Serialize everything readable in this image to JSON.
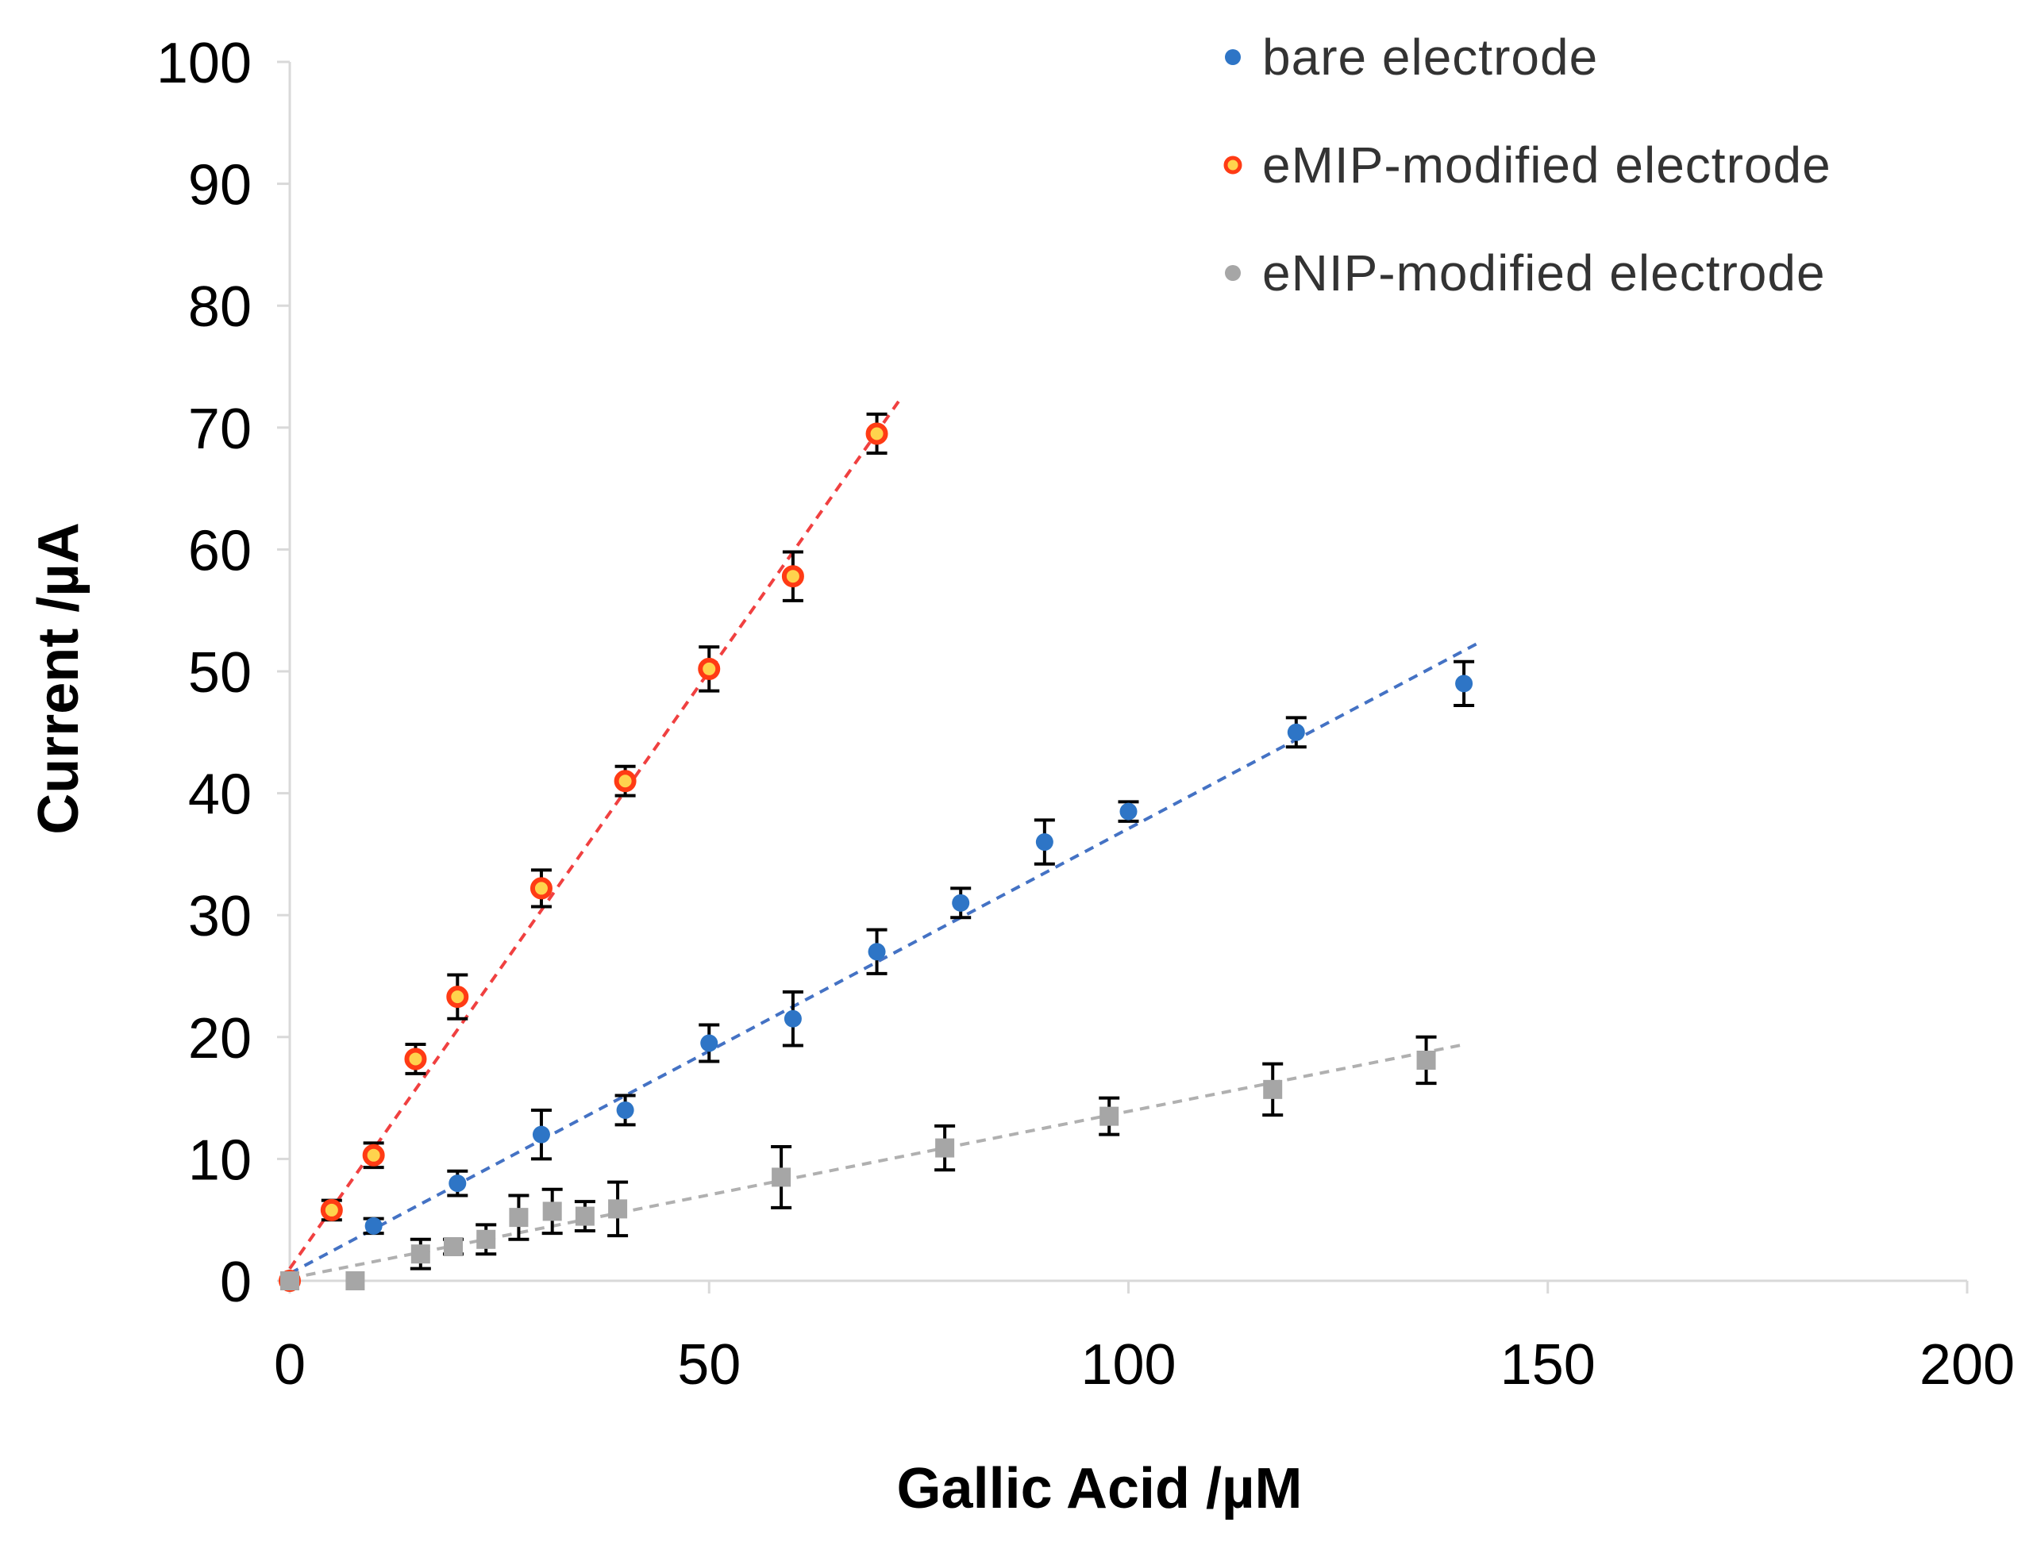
{
  "chart_data": {
    "type": "scatter",
    "title": "",
    "xlabel": "Gallic Acid /µM",
    "ylabel": "Current /µA",
    "xlim": [
      0,
      200
    ],
    "ylim": [
      0,
      100
    ],
    "xticks": [
      0,
      50,
      100,
      150,
      200
    ],
    "yticks": [
      0,
      10,
      20,
      30,
      40,
      50,
      60,
      70,
      80,
      90,
      100
    ],
    "xtick_labels": [
      "0",
      "50",
      "100",
      "150",
      "200"
    ],
    "ytick_labels": [
      "0",
      "10",
      "20",
      "30",
      "40",
      "50",
      "60",
      "70",
      "80",
      "90",
      "100"
    ],
    "grid": false,
    "legend_position": "top-right",
    "series": [
      {
        "name": "bare electrode",
        "color": "#2e75c6",
        "marker": "circle",
        "trend": {
          "x_range": [
            0,
            142
          ],
          "slope": 0.365,
          "intercept": 0.6,
          "color": "#4472c4"
        },
        "points": [
          {
            "x": 0,
            "y": 0,
            "err": 0
          },
          {
            "x": 10,
            "y": 4.5,
            "err": 0.6
          },
          {
            "x": 20,
            "y": 8,
            "err": 1
          },
          {
            "x": 30,
            "y": 12,
            "err": 2
          },
          {
            "x": 40,
            "y": 14,
            "err": 1.2
          },
          {
            "x": 50,
            "y": 19.5,
            "err": 1.5
          },
          {
            "x": 60,
            "y": 21.5,
            "err": 2.2
          },
          {
            "x": 70,
            "y": 27,
            "err": 1.8
          },
          {
            "x": 80,
            "y": 31,
            "err": 1.2
          },
          {
            "x": 90,
            "y": 36,
            "err": 1.8
          },
          {
            "x": 100,
            "y": 38.5,
            "err": 0.8
          },
          {
            "x": 120,
            "y": 45,
            "err": 1.2
          },
          {
            "x": 140,
            "y": 49,
            "err": 1.8
          }
        ]
      },
      {
        "name": "eMIP-modified electrode",
        "color": "#ff3b14",
        "marker": "ring",
        "trend": {
          "x_range": [
            0,
            73
          ],
          "slope": 0.98,
          "intercept": 1.0,
          "color": "#f04040"
        },
        "points": [
          {
            "x": 0,
            "y": 0,
            "err": 0
          },
          {
            "x": 5,
            "y": 5.8,
            "err": 0.8
          },
          {
            "x": 10,
            "y": 10.3,
            "err": 1
          },
          {
            "x": 15,
            "y": 18.2,
            "err": 1.2
          },
          {
            "x": 20,
            "y": 23.3,
            "err": 1.8
          },
          {
            "x": 30,
            "y": 32.2,
            "err": 1.5
          },
          {
            "x": 40,
            "y": 41,
            "err": 1.2
          },
          {
            "x": 50,
            "y": 50.2,
            "err": 1.8
          },
          {
            "x": 60,
            "y": 57.8,
            "err": 2
          },
          {
            "x": 70,
            "y": 69.5,
            "err": 1.6
          }
        ]
      },
      {
        "name": "eNIP-modified electrode",
        "color": "#a6a6a6",
        "marker": "square",
        "trend": {
          "x_range": [
            0,
            140
          ],
          "slope": 0.137,
          "intercept": 0.2,
          "color": "#b0b0b0"
        },
        "points": [
          {
            "x": 0,
            "y": 0,
            "err": 0
          },
          {
            "x": 7.8,
            "y": 0,
            "err": 0
          },
          {
            "x": 15.6,
            "y": 2.2,
            "err": 1.2
          },
          {
            "x": 19.5,
            "y": 2.8,
            "err": 0.6
          },
          {
            "x": 23.4,
            "y": 3.4,
            "err": 1.2
          },
          {
            "x": 27.3,
            "y": 5.2,
            "err": 1.8
          },
          {
            "x": 31.3,
            "y": 5.7,
            "err": 1.8
          },
          {
            "x": 35.2,
            "y": 5.3,
            "err": 1.2
          },
          {
            "x": 39.1,
            "y": 5.9,
            "err": 2.2
          },
          {
            "x": 58.6,
            "y": 8.5,
            "err": 2.5
          },
          {
            "x": 78.1,
            "y": 10.9,
            "err": 1.8
          },
          {
            "x": 97.7,
            "y": 13.5,
            "err": 1.5
          },
          {
            "x": 117.2,
            "y": 15.7,
            "err": 2.1
          },
          {
            "x": 135.5,
            "y": 18.1,
            "err": 1.9
          }
        ]
      }
    ]
  }
}
